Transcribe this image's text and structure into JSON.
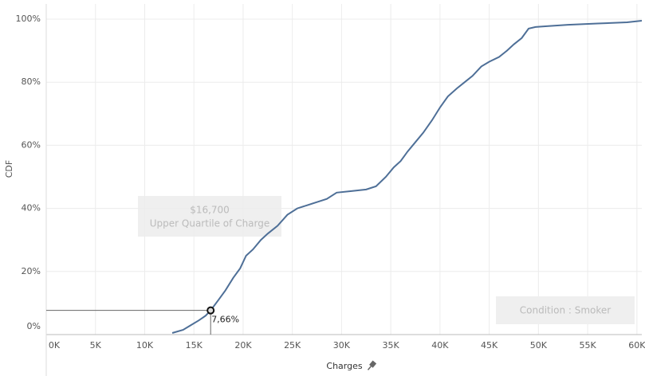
{
  "chart_data": {
    "type": "line",
    "x_label": "Charges",
    "y_label": "CDF",
    "x": [
      12800,
      13900,
      14700,
      15500,
      16200,
      16700,
      17500,
      18200,
      19000,
      19700,
      20300,
      21000,
      21800,
      22500,
      23500,
      24500,
      25500,
      26500,
      27500,
      28500,
      29500,
      31000,
      32500,
      33500,
      34500,
      35300,
      36000,
      36700,
      37500,
      38300,
      39200,
      40000,
      40800,
      41700,
      42500,
      43300,
      44200,
      45000,
      46000,
      46800,
      47500,
      48300,
      49000,
      49700,
      51000,
      53000,
      56000,
      59000,
      60500
    ],
    "values": [
      0.5,
      1.5,
      3,
      4.5,
      6,
      7.66,
      11,
      14,
      18,
      21,
      25,
      27,
      30,
      32,
      34.5,
      38,
      40,
      41,
      42,
      43,
      45,
      45.5,
      46,
      47,
      50,
      53,
      55,
      58,
      61,
      64,
      68,
      72,
      75.5,
      78,
      80,
      82,
      85,
      86.5,
      88,
      90,
      92,
      94,
      97,
      97.5,
      97.8,
      98.2,
      98.6,
      99,
      99.5
    ],
    "color": "#4e6f97",
    "xlim": [
      0,
      60500
    ],
    "ylim": [
      0,
      104.8
    ],
    "xticks": [
      {
        "value": 0,
        "label": "0K"
      },
      {
        "value": 5000,
        "label": "5K"
      },
      {
        "value": 10000,
        "label": "10K"
      },
      {
        "value": 15000,
        "label": "15K"
      },
      {
        "value": 20000,
        "label": "20K"
      },
      {
        "value": 25000,
        "label": "25K"
      },
      {
        "value": 30000,
        "label": "30K"
      },
      {
        "value": 35000,
        "label": "35K"
      },
      {
        "value": 40000,
        "label": "40K"
      },
      {
        "value": 45000,
        "label": "45K"
      },
      {
        "value": 50000,
        "label": "50K"
      },
      {
        "value": 55000,
        "label": "55K"
      },
      {
        "value": 60000,
        "label": "60K"
      }
    ],
    "yticks": [
      {
        "value": 0,
        "label": "0%"
      },
      {
        "value": 20,
        "label": "20%"
      },
      {
        "value": 40,
        "label": "40%"
      },
      {
        "value": 60,
        "label": "60%"
      },
      {
        "value": 80,
        "label": "80%"
      },
      {
        "value": 100,
        "label": "100%"
      }
    ],
    "grid": true,
    "marker": {
      "x": 16700,
      "y": 7.66,
      "x_label": "$16,700",
      "y_label": "7,66%"
    },
    "annotation_text": "Upper Quartile of Charge",
    "filter_label": "Condition : Smoker"
  }
}
